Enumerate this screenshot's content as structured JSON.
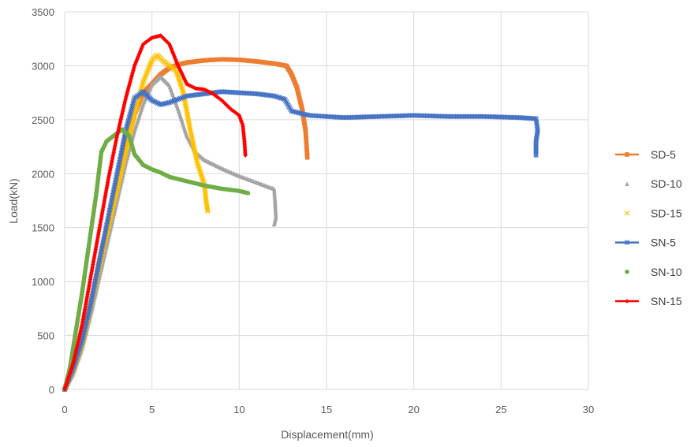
{
  "chart_data": {
    "type": "scatter",
    "title": "",
    "xlabel": "Displacement(mm)",
    "ylabel": "Load(kN)",
    "xlim": [
      0,
      30
    ],
    "ylim": [
      0,
      3500
    ],
    "x_ticks": [
      "0",
      "5",
      "10",
      "15",
      "20",
      "25",
      "30"
    ],
    "y_ticks": [
      "0",
      "500",
      "1000",
      "1500",
      "2000",
      "2500",
      "3000",
      "3500"
    ],
    "grid": true,
    "legend_position": "right",
    "series": [
      {
        "name": "SD-5",
        "color": "#ed7d31",
        "marker": "square",
        "points": [
          [
            0,
            0
          ],
          [
            0.5,
            200
          ],
          [
            1,
            450
          ],
          [
            1.5,
            800
          ],
          [
            2,
            1200
          ],
          [
            2.5,
            1550
          ],
          [
            3,
            1900
          ],
          [
            3.5,
            2250
          ],
          [
            4,
            2550
          ],
          [
            4.5,
            2750
          ],
          [
            5,
            2830
          ],
          [
            5.5,
            2920
          ],
          [
            6,
            2980
          ],
          [
            6.5,
            3010
          ],
          [
            7,
            3030
          ],
          [
            8,
            3050
          ],
          [
            9,
            3060
          ],
          [
            10,
            3055
          ],
          [
            11,
            3040
          ],
          [
            12,
            3020
          ],
          [
            12.7,
            3000
          ],
          [
            13,
            2920
          ],
          [
            13.3,
            2800
          ],
          [
            13.6,
            2600
          ],
          [
            13.8,
            2400
          ],
          [
            13.9,
            2150
          ]
        ]
      },
      {
        "name": "SD-10",
        "color": "#a5a5a5",
        "marker": "triangle",
        "points": [
          [
            0,
            0
          ],
          [
            0.5,
            150
          ],
          [
            1,
            380
          ],
          [
            1.5,
            700
          ],
          [
            2,
            1050
          ],
          [
            2.5,
            1400
          ],
          [
            3,
            1750
          ],
          [
            3.5,
            2100
          ],
          [
            4,
            2400
          ],
          [
            4.5,
            2650
          ],
          [
            5,
            2830
          ],
          [
            5.5,
            2900
          ],
          [
            6,
            2820
          ],
          [
            6.5,
            2600
          ],
          [
            7,
            2350
          ],
          [
            7.5,
            2200
          ],
          [
            8,
            2130
          ],
          [
            9,
            2050
          ],
          [
            10,
            1980
          ],
          [
            11,
            1920
          ],
          [
            12,
            1860
          ],
          [
            12.05,
            1750
          ],
          [
            12.1,
            1600
          ],
          [
            12,
            1530
          ]
        ]
      },
      {
        "name": "SD-15",
        "color": "#ffc000",
        "marker": "x",
        "points": [
          [
            0,
            0
          ],
          [
            0.5,
            180
          ],
          [
            1,
            420
          ],
          [
            1.5,
            780
          ],
          [
            2,
            1150
          ],
          [
            2.5,
            1500
          ],
          [
            3,
            1850
          ],
          [
            3.5,
            2200
          ],
          [
            4,
            2550
          ],
          [
            4.5,
            2850
          ],
          [
            5,
            3050
          ],
          [
            5.3,
            3100
          ],
          [
            5.6,
            3050
          ],
          [
            6,
            3000
          ],
          [
            6.4,
            2950
          ],
          [
            6.8,
            2750
          ],
          [
            7.2,
            2400
          ],
          [
            7.6,
            2100
          ],
          [
            8,
            1900
          ],
          [
            8.1,
            1750
          ],
          [
            8.2,
            1650
          ]
        ]
      },
      {
        "name": "SN-5",
        "color": "#4472c4",
        "marker": "star",
        "points": [
          [
            0,
            0
          ],
          [
            0.5,
            200
          ],
          [
            1,
            450
          ],
          [
            1.5,
            800
          ],
          [
            2,
            1200
          ],
          [
            2.5,
            1600
          ],
          [
            3,
            2000
          ],
          [
            3.5,
            2400
          ],
          [
            4,
            2700
          ],
          [
            4.5,
            2760
          ],
          [
            5,
            2680
          ],
          [
            5.5,
            2640
          ],
          [
            6,
            2660
          ],
          [
            7,
            2720
          ],
          [
            8,
            2740
          ],
          [
            9,
            2760
          ],
          [
            10,
            2750
          ],
          [
            11,
            2740
          ],
          [
            12,
            2720
          ],
          [
            12.6,
            2690
          ],
          [
            13,
            2580
          ],
          [
            14,
            2540
          ],
          [
            16,
            2520
          ],
          [
            18,
            2530
          ],
          [
            20,
            2540
          ],
          [
            22,
            2530
          ],
          [
            24,
            2530
          ],
          [
            26,
            2520
          ],
          [
            27,
            2510
          ],
          [
            27.1,
            2400
          ],
          [
            27,
            2300
          ],
          [
            27,
            2170
          ]
        ]
      },
      {
        "name": "SN-10",
        "color": "#70ad47",
        "marker": "circle",
        "points": [
          [
            0,
            0
          ],
          [
            0.3,
            200
          ],
          [
            0.6,
            500
          ],
          [
            1,
            900
          ],
          [
            1.4,
            1350
          ],
          [
            1.8,
            1800
          ],
          [
            2.1,
            2200
          ],
          [
            2.4,
            2300
          ],
          [
            2.8,
            2350
          ],
          [
            3.3,
            2410
          ],
          [
            3.7,
            2350
          ],
          [
            4,
            2180
          ],
          [
            4.5,
            2080
          ],
          [
            5,
            2040
          ],
          [
            5.5,
            2010
          ],
          [
            6,
            1970
          ],
          [
            7,
            1930
          ],
          [
            8,
            1890
          ],
          [
            9,
            1860
          ],
          [
            10,
            1840
          ],
          [
            10.5,
            1820
          ]
        ]
      },
      {
        "name": "SN-15",
        "color": "#ff0000",
        "marker": "diamond",
        "points": [
          [
            0,
            0
          ],
          [
            0.5,
            250
          ],
          [
            1,
            600
          ],
          [
            1.5,
            1050
          ],
          [
            2,
            1500
          ],
          [
            2.5,
            1950
          ],
          [
            3,
            2350
          ],
          [
            3.5,
            2700
          ],
          [
            4,
            3000
          ],
          [
            4.5,
            3200
          ],
          [
            5,
            3260
          ],
          [
            5.5,
            3280
          ],
          [
            6,
            3200
          ],
          [
            6.5,
            3000
          ],
          [
            7,
            2830
          ],
          [
            7.5,
            2790
          ],
          [
            8,
            2780
          ],
          [
            8.5,
            2740
          ],
          [
            9,
            2680
          ],
          [
            9.5,
            2600
          ],
          [
            10,
            2540
          ],
          [
            10.2,
            2450
          ],
          [
            10.3,
            2300
          ],
          [
            10.35,
            2170
          ]
        ]
      }
    ]
  }
}
